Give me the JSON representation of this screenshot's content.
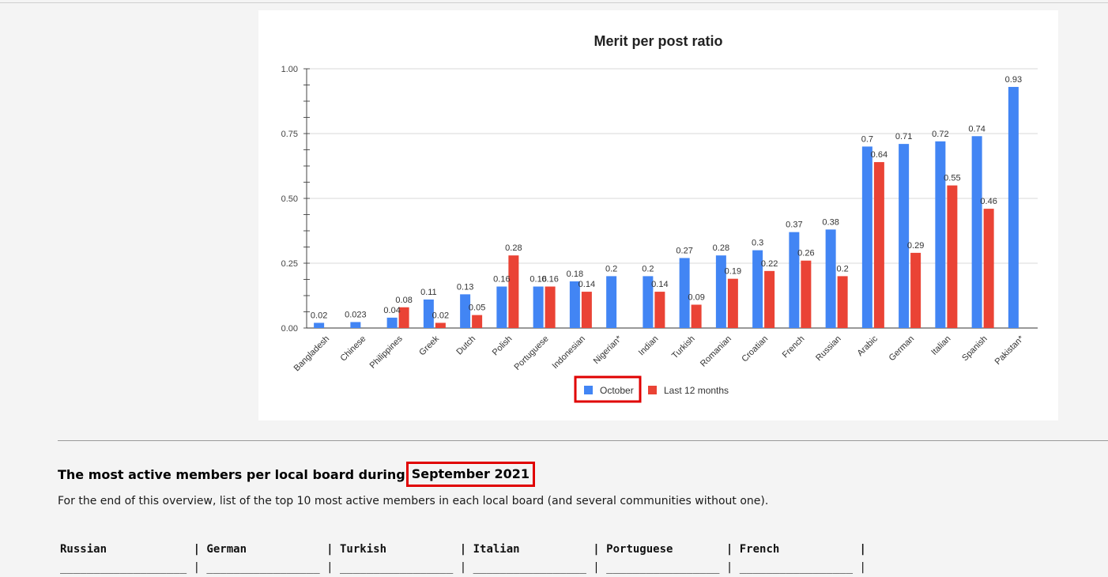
{
  "chart_data": {
    "type": "bar",
    "title": "Merit per post ratio",
    "categories": [
      "Bangladesh",
      "Chinese",
      "Philippines",
      "Greek",
      "Dutch",
      "Polish",
      "Portuguese",
      "Indonesian",
      "Nigerian*",
      "Indian",
      "Turkish",
      "Romanian",
      "Croatian",
      "French",
      "Russian",
      "Arabic",
      "German",
      "Italian",
      "Spanish",
      "Pakistan*"
    ],
    "series": [
      {
        "name": "October",
        "color": "#4285f4",
        "values": [
          0.02,
          0.023,
          0.04,
          0.11,
          0.13,
          0.16,
          0.16,
          0.18,
          0.2,
          0.2,
          0.27,
          0.28,
          0.3,
          0.37,
          0.38,
          0.7,
          0.71,
          0.72,
          0.74,
          0.93
        ],
        "labels": [
          "0.02",
          "0.023",
          "0.04",
          "0.11",
          "0.13",
          "0.16",
          "0.16",
          "0.18",
          "0.2",
          "0.2",
          "0.27",
          "0.28",
          "0.3",
          "0.37",
          "0.38",
          "0.7",
          "0.71",
          "0.72",
          "0.74",
          "0.93"
        ]
      },
      {
        "name": "Last 12 months",
        "color": "#ea4335",
        "values": [
          null,
          null,
          0.08,
          0.02,
          0.05,
          0.28,
          0.16,
          0.14,
          null,
          0.14,
          0.09,
          0.19,
          0.22,
          0.26,
          0.2,
          0.64,
          0.29,
          0.55,
          0.46,
          null
        ],
        "labels": [
          "",
          "",
          "0.08",
          "0.02",
          "0.05",
          "0.28",
          "0.16",
          "0.14",
          "",
          "0.14",
          "0.09",
          "0.19",
          "0.22",
          "0.26",
          "0.2",
          "0.64",
          "0.29",
          "0.55",
          "0.46",
          ""
        ]
      }
    ],
    "ylim": [
      0,
      1
    ],
    "yticks": [
      "0.00",
      "0.25",
      "0.50",
      "0.75",
      "1.00"
    ],
    "ytick_values": [
      0,
      0.25,
      0.5,
      0.75,
      1.0
    ],
    "legend_position": "bottom",
    "grid": true,
    "highlighted_legend_item": "October",
    "highlight_color": "#e00000"
  },
  "section": {
    "heading_prefix": "The most active members per local board during",
    "heading_month": "September 2021",
    "intro": "For the end of this overview, list of the top 10 most active members in each local board (and several communities without one)."
  },
  "table": {
    "headers": [
      "Russian",
      "German",
      "Turkish",
      "Italian",
      "Portuguese",
      "French"
    ]
  }
}
